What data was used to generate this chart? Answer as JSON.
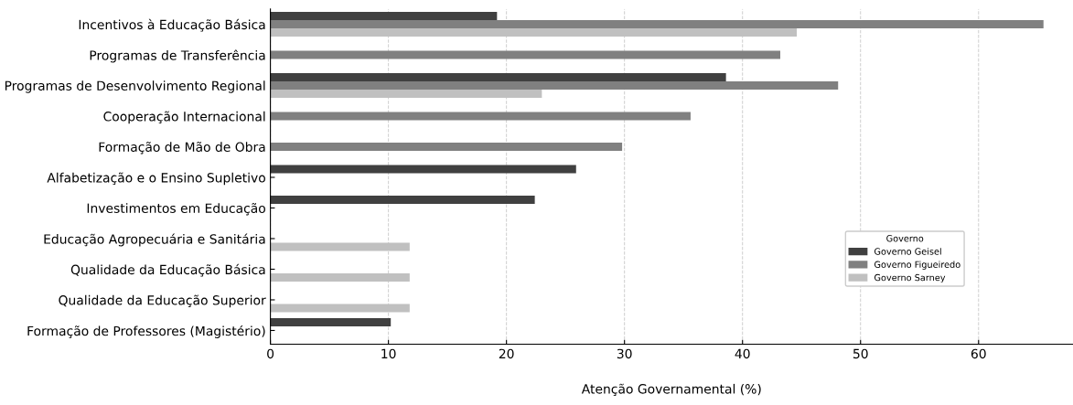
{
  "chart_data": {
    "type": "bar",
    "orientation": "horizontal",
    "xlabel": "Atenção Governamental (%)",
    "legend_title": "Governo",
    "legend": "lower right",
    "grid": "x",
    "categories": [
      "Incentivos à Educação Básica",
      "Programas de Transferência",
      "Programas de Desenvolvimento Regional",
      "Cooperação Internacional",
      "Formação de Mão de Obra",
      "Alfabetização e o Ensino Supletivo",
      "Investimentos em Educação",
      "Educação Agropecuária e Sanitária",
      "Qualidade da Educação Básica",
      "Qualidade da Educação Superior",
      "Formação de Professores (Magistério)"
    ],
    "xlim": [
      0,
      68
    ],
    "xticks": [
      0,
      10,
      20,
      30,
      40,
      50,
      60
    ],
    "series": [
      {
        "name": "Governo Geisel",
        "color": "#404040",
        "values": [
          19.2,
          null,
          38.6,
          null,
          null,
          25.9,
          22.4,
          null,
          null,
          null,
          10.2
        ]
      },
      {
        "name": "Governo Figueiredo",
        "color": "#808080",
        "values": [
          65.5,
          43.2,
          48.1,
          35.6,
          29.8,
          null,
          null,
          null,
          null,
          null,
          null
        ]
      },
      {
        "name": "Governo Sarney",
        "color": "#c0c0c0",
        "values": [
          44.6,
          null,
          23.0,
          null,
          null,
          null,
          null,
          11.8,
          11.8,
          11.8,
          null
        ]
      }
    ]
  }
}
